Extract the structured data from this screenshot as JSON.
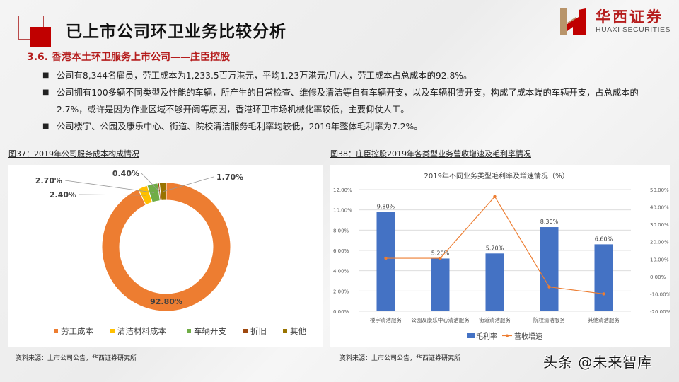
{
  "header": {
    "title": "已上市公司环卫业务比较分析",
    "brand_cn": "华西证券",
    "brand_en": "HUAXI SECURITIES",
    "section": "3.6. 香港本土环卫服务上市公司——庄臣控股"
  },
  "bullets": [
    "公司有8,344名雇员，劳工成本为1,233.5百万港元，平均1.23万港元/月/人，劳工成本占总成本的92.8%。",
    "公司拥有100多辆不同类型及性能的车辆，所产生的日常检查、维修及清洁等自有车辆开支，以及车辆租赁开支，构成了成本端的车辆开支，占总成本的2.7%，或许是因为作业区域不够开阔等原因，香港环卫市场机械化率较低，主要仰仗人工。",
    "公司楼宇、公园及康乐中心、街道、院校清洁服务毛利率均较低，2019年整体毛利率为7.2%。"
  ],
  "bullet_marker": "■",
  "figures": {
    "left": {
      "caption": "图37：2019年公司服务成本构成情况",
      "source": "资料来源：上市公司公告，华西证券研究所"
    },
    "right": {
      "caption": "图38：庄臣控股2019年各类型业务营收增速及毛利率情况",
      "source": "资料来源：上市公司公告，华西证券研究所"
    }
  },
  "watermark": "头条 @未来智库",
  "colors": {
    "brand_red": "#c00000",
    "labor": "#ed7d31",
    "cleaning_material": "#ffc000",
    "vehicle": "#70ad47",
    "depreciation": "#9e480e",
    "other": "#997300",
    "bar": "#4472c4",
    "line": "#ed7d31"
  },
  "chart_data": [
    {
      "type": "pie",
      "variant": "donut",
      "title": "2019年公司服务成本构成情况",
      "categories": [
        "劳工成本",
        "清洁材料成本",
        "车辆开支",
        "折旧",
        "其他"
      ],
      "values": [
        92.8,
        2.4,
        2.7,
        0.4,
        1.7
      ],
      "labels": [
        "92.80%",
        "2.40%",
        "2.70%",
        "0.40%",
        "1.70%"
      ],
      "unit": "%",
      "legend_position": "bottom"
    },
    {
      "type": "bar",
      "combo": "bar+line, dual axis",
      "title": "2019年不同业务类型毛利率及增速情况（%）",
      "categories": [
        "楼宇清洁服务",
        "公园及康乐中心清洁服务",
        "街道清洁服务",
        "院校清洁服务",
        "其他清洁服务"
      ],
      "series": [
        {
          "name": "毛利率",
          "type": "bar",
          "axis": "left",
          "values": [
            9.8,
            5.2,
            5.7,
            8.3,
            6.6
          ],
          "labels": [
            "9.80%",
            "5.20%",
            "5.70%",
            "8.30%",
            "6.60%"
          ]
        },
        {
          "name": "营收增速",
          "type": "line",
          "axis": "right",
          "values": [
            10.5,
            10.5,
            46.0,
            -6.0,
            -10.0
          ]
        }
      ],
      "y_left": {
        "ticks": [
          "0.00%",
          "2.00%",
          "4.00%",
          "6.00%",
          "8.00%",
          "10.00%",
          "12.00%"
        ],
        "range": [
          0,
          12
        ]
      },
      "y_right": {
        "ticks": [
          "-20.00%",
          "-10.00%",
          "0.00%",
          "10.00%",
          "20.00%",
          "30.00%",
          "40.00%",
          "50.00%"
        ],
        "range": [
          -20,
          50
        ]
      },
      "grid": true,
      "legend_position": "bottom"
    }
  ]
}
